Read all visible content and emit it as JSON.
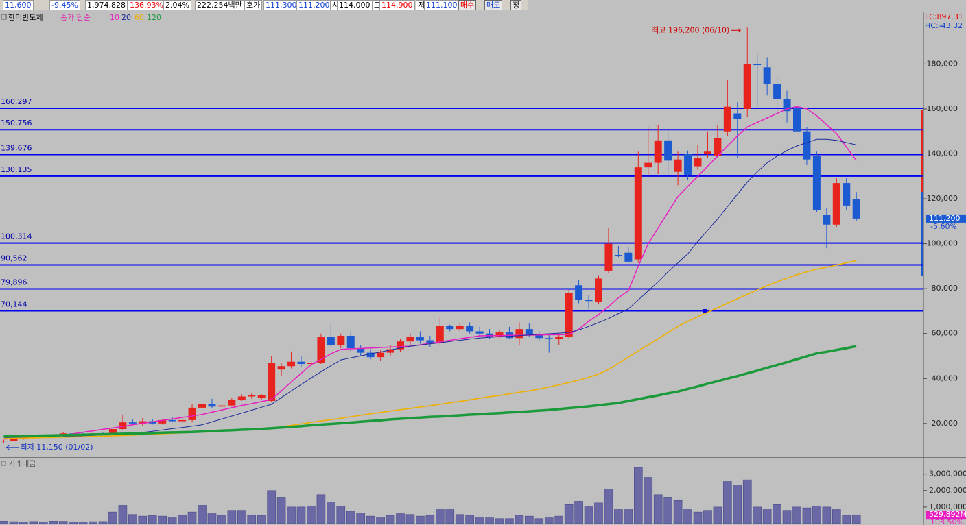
{
  "toolbar": {
    "fields": [
      "11,600",
      "-9.45%",
      "1,974,828",
      "136.93%",
      "2.04%",
      "222,254백만",
      "호가",
      "111,300",
      "111,200",
      "시",
      "114,000",
      "고",
      "114,900",
      "저",
      "111,100"
    ],
    "buttons": [
      "매수",
      "매도",
      "정"
    ]
  },
  "chart_data": [
    {
      "type": "candlestick",
      "title": "한미반도체",
      "ma_label": "종가 단순",
      "up_color": "#e8231d",
      "down_color": "#1c5ad2",
      "open": [
        12000,
        12300,
        13000,
        13400,
        13800,
        14300,
        15000,
        15600,
        15200,
        15000,
        15600,
        15000,
        17500,
        20500,
        20000,
        21000,
        20000,
        21500,
        21000,
        21500,
        27000,
        28500,
        27500,
        28000,
        30500,
        32000,
        31500,
        30000,
        44000,
        45500,
        47500,
        46500,
        47000,
        58500,
        55000,
        59000,
        53500,
        51500,
        49500,
        51500,
        53000,
        56500,
        58500,
        57000,
        56000,
        63500,
        62000,
        63500,
        61000,
        60000,
        58500,
        60500,
        58000,
        62000,
        59500,
        58000,
        57500,
        58500,
        81500,
        75000,
        74000,
        88000,
        95000,
        96000,
        93000,
        134000,
        136000,
        146000,
        132000,
        140000,
        134500,
        140000,
        139000,
        150000,
        158000,
        160000,
        180000,
        178500,
        171000,
        164500,
        161000,
        150000,
        139000,
        113000,
        108500,
        127000,
        120000
      ],
      "high": [
        12600,
        13200,
        13600,
        14000,
        14600,
        15200,
        16000,
        16200,
        15800,
        16000,
        16000,
        18500,
        24000,
        22000,
        22500,
        22000,
        22000,
        23000,
        22500,
        28500,
        30000,
        31000,
        29000,
        31500,
        33000,
        33500,
        33000,
        50000,
        47000,
        52000,
        50000,
        49000,
        60000,
        64500,
        60000,
        61000,
        55000,
        53000,
        52500,
        55000,
        57500,
        60000,
        61000,
        59000,
        67500,
        64000,
        64500,
        65000,
        63000,
        62000,
        61500,
        63000,
        65000,
        64500,
        61000,
        59500,
        60000,
        79500,
        84000,
        77000,
        86000,
        107000,
        99000,
        98500,
        141000,
        152000,
        153000,
        150000,
        141000,
        141500,
        144000,
        150000,
        153000,
        173000,
        163000,
        196200,
        184500,
        183000,
        175000,
        168000,
        169000,
        152000,
        141000,
        116000,
        129500,
        129500,
        123000
      ],
      "low": [
        11150,
        12100,
        12800,
        13100,
        13500,
        14000,
        14600,
        14800,
        14600,
        14500,
        14800,
        14800,
        17000,
        19500,
        19000,
        19500,
        19500,
        20500,
        20000,
        20500,
        26000,
        27000,
        26000,
        27500,
        30000,
        31000,
        30500,
        29500,
        41000,
        44500,
        45000,
        45000,
        46500,
        54000,
        53500,
        52000,
        50000,
        48500,
        48000,
        50000,
        52000,
        55000,
        55500,
        54000,
        55000,
        61000,
        61000,
        60000,
        58500,
        57500,
        58000,
        57500,
        55000,
        58500,
        56500,
        51500,
        55000,
        58000,
        73500,
        71000,
        73000,
        87000,
        94000,
        91500,
        91500,
        130000,
        131000,
        131000,
        126000,
        128500,
        133000,
        138000,
        138500,
        148000,
        138000,
        156500,
        161000,
        166000,
        158000,
        154000,
        147500,
        135000,
        114000,
        98000,
        107500,
        115000,
        110000
      ],
      "close": [
        12300,
        13000,
        13400,
        13800,
        14300,
        15000,
        15600,
        15200,
        15000,
        15600,
        15200,
        17500,
        20500,
        20000,
        21000,
        20000,
        21500,
        21000,
        21500,
        27000,
        28500,
        27500,
        28000,
        30500,
        32000,
        32500,
        32500,
        47000,
        45500,
        47500,
        46500,
        47000,
        58500,
        55000,
        59000,
        53500,
        51500,
        49500,
        51500,
        53000,
        56500,
        58500,
        57000,
        55500,
        63500,
        62000,
        63500,
        61000,
        60000,
        58500,
        60500,
        58000,
        62000,
        59500,
        58000,
        57500,
        58500,
        78000,
        75000,
        74500,
        84500,
        100000,
        94500,
        92000,
        134000,
        136000,
        146000,
        137000,
        137500,
        130500,
        138000,
        141000,
        147000,
        161000,
        155500,
        180000,
        179500,
        171000,
        164500,
        159000,
        150000,
        137500,
        115000,
        108500,
        127000,
        117000,
        111200
      ],
      "series": [
        {
          "name": "10",
          "color": "#e81ec0",
          "width": 1.5,
          "values": [
            13000,
            13300,
            13600,
            13900,
            14200,
            14500,
            14800,
            15400,
            16100,
            16700,
            17400,
            18000,
            18700,
            19400,
            20100,
            20700,
            21400,
            22000,
            22700,
            23300,
            24000,
            25000,
            26000,
            27000,
            28000,
            28800,
            29700,
            30700,
            34500,
            38500,
            42300,
            46200,
            48500,
            51000,
            53000,
            53200,
            53400,
            53600,
            53800,
            54000,
            54200,
            54400,
            55000,
            55700,
            56300,
            57000,
            57700,
            58300,
            59000,
            59100,
            59100,
            59200,
            59300,
            59300,
            59400,
            59500,
            59500,
            59600,
            62000,
            65500,
            68500,
            72000,
            76000,
            79000,
            90000,
            100000,
            107000,
            114000,
            121000,
            125500,
            130000,
            134500,
            139000,
            143500,
            148000,
            152000,
            154000,
            156000,
            158000,
            160000,
            161000,
            160000,
            157000,
            153000,
            149000,
            143000,
            137000
          ]
        },
        {
          "name": "20",
          "color": "#1a2a9a",
          "width": 1,
          "values": [
            13500,
            13600,
            13700,
            13800,
            13900,
            14000,
            14100,
            14300,
            14500,
            14700,
            14900,
            15000,
            15200,
            15400,
            16000,
            16500,
            17100,
            17700,
            18200,
            18800,
            19400,
            20700,
            22000,
            23300,
            24600,
            25900,
            27200,
            28500,
            31500,
            34500,
            37300,
            40200,
            43000,
            45700,
            48300,
            49200,
            50100,
            51000,
            51800,
            52700,
            53600,
            54400,
            54900,
            55400,
            55900,
            56500,
            57000,
            57500,
            58000,
            58300,
            58600,
            58800,
            59100,
            59400,
            59700,
            59900,
            60200,
            60500,
            61600,
            63200,
            64900,
            66700,
            68900,
            71000,
            75000,
            79000,
            83000,
            87500,
            91500,
            95500,
            101000,
            106000,
            111000,
            116500,
            122000,
            127500,
            132000,
            136000,
            139000,
            141500,
            143500,
            145000,
            146500,
            146500,
            146000,
            145000,
            144000
          ]
        },
        {
          "name": "60",
          "color": "#f0b000",
          "width": 1.6,
          "values": [
            13300,
            13400,
            13500,
            13600,
            13700,
            13800,
            13900,
            14000,
            14100,
            14200,
            14300,
            14500,
            14600,
            14800,
            15000,
            15200,
            15400,
            15600,
            15800,
            16000,
            16300,
            16500,
            16800,
            17000,
            17200,
            17400,
            17600,
            17900,
            18600,
            19200,
            19800,
            20500,
            21100,
            21700,
            22300,
            23000,
            23600,
            24300,
            24900,
            25500,
            26100,
            26700,
            27300,
            27900,
            28500,
            29200,
            29800,
            30500,
            31200,
            31900,
            32500,
            33200,
            33900,
            34500,
            35300,
            36200,
            37200,
            38200,
            39300,
            40500,
            42000,
            44000,
            46800,
            49500,
            52300,
            55000,
            57700,
            60400,
            63200,
            65500,
            67500,
            69500,
            71500,
            73500,
            75500,
            77500,
            79500,
            81300,
            83000,
            84700,
            86200,
            87500,
            88700,
            89500,
            90500,
            91500,
            92500
          ]
        },
        {
          "name": "120",
          "color": "#1a9a3a",
          "width": 3.5,
          "values": [
            14200,
            14300,
            14400,
            14500,
            14600,
            14700,
            14800,
            14900,
            15000,
            15100,
            15200,
            15300,
            15400,
            15500,
            15600,
            15700,
            15900,
            16000,
            16100,
            16200,
            16400,
            16600,
            16800,
            17000,
            17200,
            17400,
            17600,
            17900,
            18200,
            18500,
            18800,
            19200,
            19500,
            19800,
            20100,
            20400,
            20800,
            21100,
            21400,
            21800,
            22100,
            22400,
            22600,
            22900,
            23100,
            23400,
            23600,
            23900,
            24100,
            24400,
            24600,
            24900,
            25100,
            25400,
            25700,
            26000,
            26400,
            26800,
            27200,
            27600,
            28100,
            28600,
            29100,
            30000,
            30800,
            31700,
            32500,
            33400,
            34200,
            35400,
            36500,
            37700,
            38800,
            40000,
            41100,
            42300,
            43500,
            44800,
            46000,
            47300,
            48600,
            49900,
            51200,
            51900,
            52700,
            53500,
            54400
          ]
        }
      ],
      "ylim": [
        5000,
        203000
      ],
      "yticks": [
        {
          "value": 20000,
          "label": "20,000"
        },
        {
          "value": 40000,
          "label": "40,000"
        },
        {
          "value": 60000,
          "label": "60,000"
        },
        {
          "value": 80000,
          "label": "80,000"
        },
        {
          "value": 100000,
          "label": "100,000"
        },
        {
          "value": 120000,
          "label": "120,000"
        },
        {
          "value": 140000,
          "label": "140,000"
        },
        {
          "value": 160000,
          "label": "160,000"
        },
        {
          "value": 180000,
          "label": "180,000"
        }
      ],
      "levels": [
        {
          "value": 160297,
          "label": "160,297"
        },
        {
          "value": 150756,
          "label": "150,756"
        },
        {
          "value": 139676,
          "label": "139,676"
        },
        {
          "value": 130135,
          "label": "130,135"
        },
        {
          "value": 100314,
          "label": "100,314"
        },
        {
          "value": 90562,
          "label": "90,562"
        },
        {
          "value": 79896,
          "label": "79,896"
        },
        {
          "value": 70144,
          "label": "70,144"
        }
      ],
      "level_color": "#0000ee",
      "high_label": "최고 196,200 (06/10)",
      "low_label": "최저 11,150 (01/02)",
      "current": {
        "value": 111200,
        "label": "111,200",
        "change": "-5.60%"
      },
      "stats": [
        "LC:897.31",
        "HC:-43.32"
      ]
    },
    {
      "type": "bar",
      "title": "거래대금",
      "color": "#6a69a6",
      "values": [
        150000,
        120000,
        100000,
        130000,
        110000,
        150000,
        140000,
        100000,
        110000,
        120000,
        130000,
        700000,
        1100000,
        550000,
        450000,
        500000,
        450000,
        400000,
        500000,
        700000,
        1100000,
        600000,
        500000,
        800000,
        800000,
        500000,
        500000,
        2000000,
        1600000,
        1000000,
        1000000,
        1050000,
        1750000,
        1300000,
        1050000,
        750000,
        650000,
        450000,
        400000,
        500000,
        600000,
        550000,
        450000,
        500000,
        900000,
        900000,
        550000,
        500000,
        400000,
        350000,
        300000,
        300000,
        500000,
        450000,
        300000,
        350000,
        450000,
        1150000,
        1350000,
        1050000,
        1250000,
        2100000,
        850000,
        900000,
        3400000,
        2800000,
        1750000,
        1600000,
        1400000,
        900000,
        700000,
        800000,
        1000000,
        2550000,
        2350000,
        2650000,
        1000000,
        900000,
        1150000,
        800000,
        1000000,
        950000,
        1050000,
        1000000,
        850000,
        500000,
        529892
      ],
      "ylim": [
        0,
        3900000
      ],
      "yticks": [
        {
          "value": 1000000,
          "label": "1,000,000"
        },
        {
          "value": 2000000,
          "label": "2,000,000"
        },
        {
          "value": 3000000,
          "label": "3,000,000"
        }
      ],
      "current": {
        "value": 529892,
        "label": "529,892M",
        "ratio": "108.50%"
      }
    }
  ]
}
